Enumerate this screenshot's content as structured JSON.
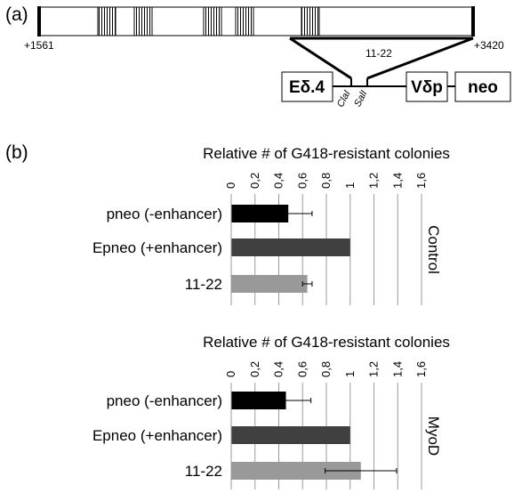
{
  "panel_a": {
    "label": "(a)",
    "coord_start": "+1561",
    "coord_end": "+3420",
    "fragment_label": "11-22",
    "boxes": {
      "enhancer": "Eδ.4",
      "promoter": "Vδp",
      "neo": "neo"
    },
    "sites": {
      "site1": "ClaI",
      "site2": "SalI"
    }
  },
  "panel_b": {
    "label": "(b)"
  },
  "chart_data": [
    {
      "type": "bar",
      "orientation": "horizontal",
      "title": "Relative # of G418-resistant colonies",
      "group_label": "Control",
      "categories": [
        "pneo (-enhancer)",
        "Epneo (+enhancer)",
        "11-22"
      ],
      "values": [
        0.48,
        1.0,
        0.64
      ],
      "errors": [
        0.2,
        0,
        0.04
      ],
      "colors": [
        "#000000",
        "#404040",
        "#999999"
      ],
      "xlim": [
        0,
        1.6
      ],
      "ticks": [
        "0",
        "0,2",
        "0,4",
        "0,6",
        "0,8",
        "1",
        "1,2",
        "1,4",
        "1,6"
      ],
      "grid": true
    },
    {
      "type": "bar",
      "orientation": "horizontal",
      "title": "Relative # of G418-resistant colonies",
      "group_label": "MyoD",
      "categories": [
        "pneo (-enhancer)",
        "Epneo (+enhancer)",
        "11-22"
      ],
      "values": [
        0.46,
        1.0,
        1.09
      ],
      "errors": [
        0.21,
        0,
        0.3
      ],
      "colors": [
        "#000000",
        "#404040",
        "#999999"
      ],
      "xlim": [
        0,
        1.6
      ],
      "ticks": [
        "0",
        "0,2",
        "0,4",
        "0,6",
        "0,8",
        "1",
        "1,2",
        "1,4",
        "1,6"
      ],
      "grid": true
    }
  ]
}
